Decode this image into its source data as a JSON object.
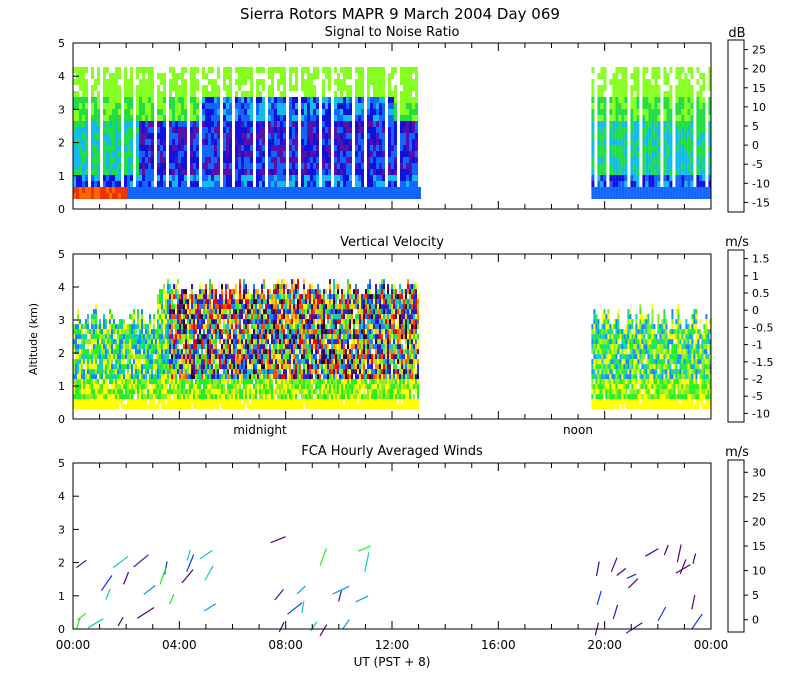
{
  "title": "Sierra Rotors  MAPR  9 March 2004 Day 069",
  "panels": [
    {
      "id": "snr",
      "subtitle": "Signal to Noise Ratio",
      "unit": "dB",
      "colorbar_labels": [
        "-15",
        "-10",
        "-5",
        "0",
        "5",
        "10",
        "15",
        "20",
        "25"
      ],
      "colors": [
        "#88ff22",
        "#22dd44",
        "#11bbee",
        "#1166ff",
        "#1111dd",
        "#5511aa",
        "#441166",
        "#ee3300",
        "#ff6600",
        "#ffaa00",
        "#ffcc00"
      ]
    },
    {
      "id": "velocity",
      "subtitle": "Vertical Velocity",
      "unit": "m/s",
      "colorbar_labels": [
        "-10",
        "-5",
        "-2",
        "-1.5",
        "-1",
        "-0.5",
        "0",
        "0.5",
        "1",
        "1.5"
      ],
      "colors": [
        "#330022",
        "#551177",
        "#3311bb",
        "#1133ff",
        "#1188ff",
        "#11ccbb",
        "#22ee22",
        "#88ee22",
        "#ffff00",
        "#ffcc00",
        "#ff8800",
        "#ff4400",
        "#ff0000"
      ],
      "marker_labels": [
        "midnight",
        "noon"
      ]
    },
    {
      "id": "winds",
      "subtitle": "FCA Hourly Averaged Winds",
      "unit": "m/s",
      "colorbar_labels": [
        "0",
        "5",
        "10",
        "15",
        "20",
        "25",
        "30"
      ],
      "colors": [
        "#550077",
        "#3311bb",
        "#1133ff",
        "#1199ee",
        "#11ccbb",
        "#22ee22",
        "#88ee22",
        "#eeee00",
        "#ffcc00",
        "#ff9900",
        "#ff5500",
        "#ff0000"
      ]
    }
  ],
  "y_axis_label": "Altitude (km)",
  "x_axis_label": "UT  (PST + 8)",
  "chart_data": {
    "type": "heatmap",
    "title": "Sierra Rotors  MAPR  9 March 2004 Day 069",
    "xlabel": "UT  (PST + 8)",
    "ylabel": "Altitude (km)",
    "x_tick_labels": [
      "00:00",
      "04:00",
      "08:00",
      "12:00",
      "16:00",
      "20:00",
      "00:00"
    ],
    "y_tick_labels": [
      "0",
      "1",
      "2",
      "3",
      "4",
      "5"
    ],
    "xlim_hours": [
      0,
      24
    ],
    "ylim_km": [
      0,
      5
    ],
    "data_coverage_hours": [
      [
        0,
        13
      ],
      [
        19.5,
        24
      ]
    ],
    "max_altitude_km": 4.2,
    "snr_db_range": [
      -15,
      25
    ],
    "velocity_ms_range": [
      -10,
      1.5
    ],
    "wind_speed_ms_range": [
      0,
      30
    ]
  }
}
